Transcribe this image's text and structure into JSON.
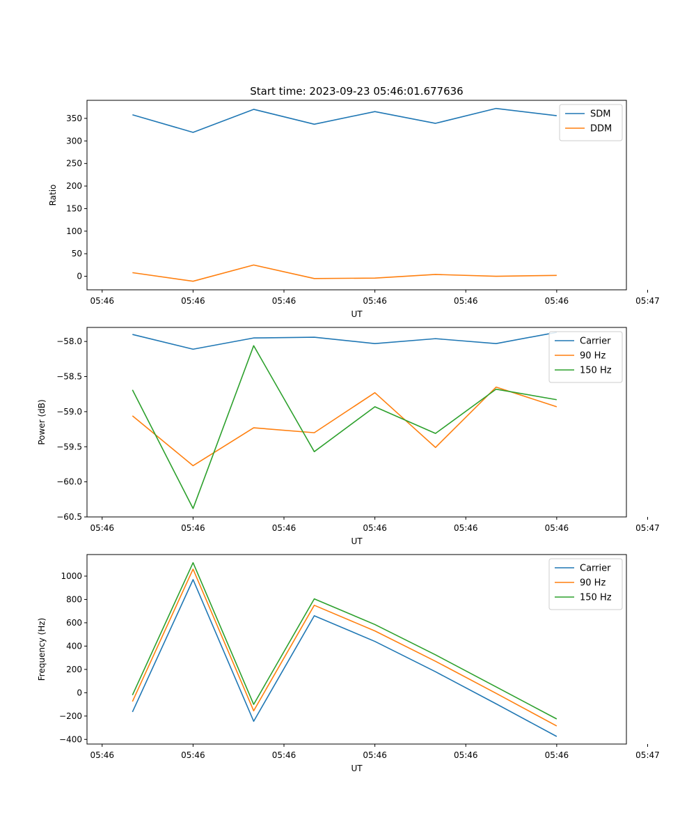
{
  "figure": {
    "title": "Start time: 2023-09-23 05:46:01.677636"
  },
  "chart_data": [
    {
      "type": "line",
      "title": "Start time: 2023-09-23 05:46:01.677636",
      "xlabel": "UT",
      "ylabel": "Ratio",
      "x": [
        1,
        2,
        3,
        4,
        5,
        6,
        7,
        8
      ],
      "xlim": [
        0.25,
        9.15
      ],
      "xticks": [
        0.5,
        2,
        3.5,
        5,
        6.5,
        8,
        9.5
      ],
      "xtick_labels": [
        "05:46",
        "05:46",
        "05:46",
        "05:46",
        "05:46",
        "05:46",
        "05:47"
      ],
      "ylim": [
        -30,
        390
      ],
      "yticks": [
        0,
        50,
        100,
        150,
        200,
        250,
        300,
        350
      ],
      "ytick_labels": [
        "0",
        "50",
        "100",
        "150",
        "200",
        "250",
        "300",
        "350"
      ],
      "legend": "upper-right",
      "series": [
        {
          "name": "SDM",
          "color": "#1f77b4",
          "values": [
            358,
            319,
            370,
            337,
            365,
            339,
            372,
            356
          ]
        },
        {
          "name": "DDM",
          "color": "#ff7f0e",
          "values": [
            8,
            -11,
            25,
            -5,
            -4,
            4,
            0,
            2
          ]
        }
      ]
    },
    {
      "type": "line",
      "title": "",
      "xlabel": "UT",
      "ylabel": "Power (dB)",
      "x": [
        1,
        2,
        3,
        4,
        5,
        6,
        7,
        8
      ],
      "xlim": [
        0.25,
        9.15
      ],
      "xticks": [
        0.5,
        2,
        3.5,
        5,
        6.5,
        8,
        9.5
      ],
      "xtick_labels": [
        "05:46",
        "05:46",
        "05:46",
        "05:46",
        "05:46",
        "05:46",
        "05:47"
      ],
      "ylim": [
        -60.5,
        -57.8
      ],
      "yticks": [
        -60.5,
        -60.0,
        -59.5,
        -59.0,
        -58.5,
        -58.0
      ],
      "ytick_labels": [
        "−60.5",
        "−60.0",
        "−59.5",
        "−59.0",
        "−58.5",
        "−58.0"
      ],
      "legend": "upper-right",
      "series": [
        {
          "name": "Carrier",
          "color": "#1f77b4",
          "values": [
            -57.9,
            -58.11,
            -57.95,
            -57.94,
            -58.03,
            -57.96,
            -58.03,
            -57.87
          ]
        },
        {
          "name": "90 Hz",
          "color": "#ff7f0e",
          "values": [
            -59.06,
            -59.77,
            -59.23,
            -59.3,
            -58.73,
            -59.51,
            -58.65,
            -58.93
          ]
        },
        {
          "name": "150 Hz",
          "color": "#2ca02c",
          "values": [
            -58.69,
            -60.38,
            -58.06,
            -59.57,
            -58.93,
            -59.31,
            -58.68,
            -58.83
          ]
        }
      ]
    },
    {
      "type": "line",
      "title": "",
      "xlabel": "UT",
      "ylabel": "Frequency (Hz)",
      "x": [
        1,
        2,
        3,
        4,
        5,
        6,
        7,
        8
      ],
      "xlim": [
        0.25,
        9.15
      ],
      "xticks": [
        0.5,
        2,
        3.5,
        5,
        6.5,
        8,
        9.5
      ],
      "xtick_labels": [
        "05:46",
        "05:46",
        "05:46",
        "05:46",
        "05:46",
        "05:46",
        "05:47"
      ],
      "ylim": [
        -440,
        1185
      ],
      "yticks": [
        -400,
        -200,
        0,
        200,
        400,
        600,
        800,
        1000
      ],
      "ytick_labels": [
        "−400",
        "−200",
        "0",
        "200",
        "400",
        "600",
        "800",
        "1000"
      ],
      "legend": "upper-right",
      "series": [
        {
          "name": "Carrier",
          "color": "#1f77b4",
          "values": [
            -165,
            970,
            -245,
            660,
            440,
            180,
            -95,
            -375
          ]
        },
        {
          "name": "90 Hz",
          "color": "#ff7f0e",
          "values": [
            -75,
            1060,
            -155,
            750,
            530,
            270,
            -5,
            -285
          ]
        },
        {
          "name": "150 Hz",
          "color": "#2ca02c",
          "values": [
            -20,
            1115,
            -100,
            805,
            585,
            325,
            50,
            -225
          ]
        }
      ]
    }
  ]
}
